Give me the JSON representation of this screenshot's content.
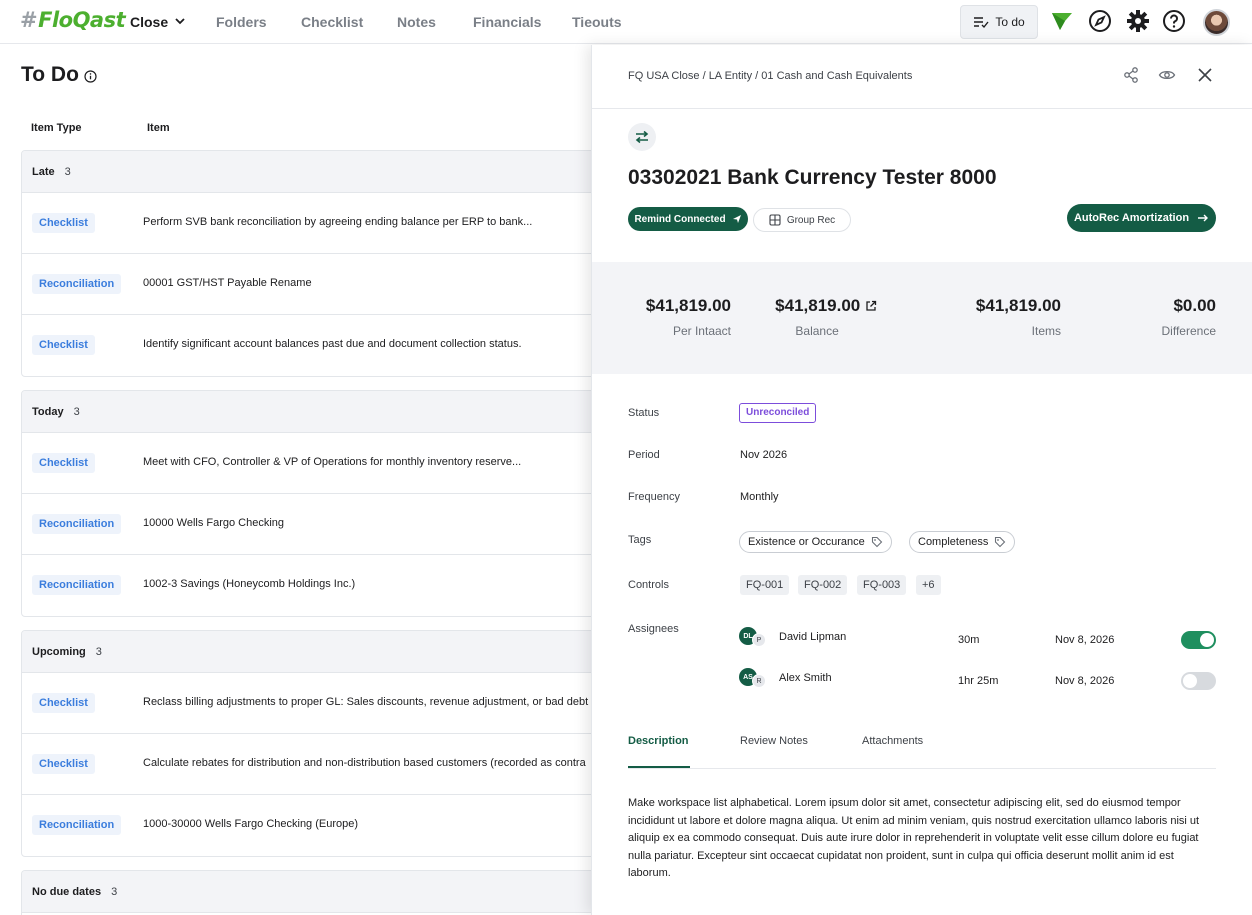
{
  "nav": {
    "logo": "FloQast",
    "close_label": "Close",
    "items": [
      "Folders",
      "Checklist",
      "Notes",
      "Financials",
      "Tieouts"
    ],
    "todo_label": "To do"
  },
  "todo": {
    "title": "To Do",
    "col_item_type": "Item Type",
    "col_item": "Item",
    "groups": [
      {
        "label": "Late",
        "count": "3",
        "rows": [
          {
            "type": "Checklist",
            "text": "Perform SVB bank reconciliation by agreeing ending balance per ERP to bank..."
          },
          {
            "type": "Reconciliation",
            "text": "00001 GST/HST Payable Rename"
          },
          {
            "type": "Checklist",
            "text": "Identify significant account balances past due and document collection status."
          }
        ]
      },
      {
        "label": "Today",
        "count": "3",
        "rows": [
          {
            "type": "Checklist",
            "text": "Meet with CFO, Controller & VP of Operations for monthly inventory reserve..."
          },
          {
            "type": "Reconciliation",
            "text": "10000 Wells Fargo Checking"
          },
          {
            "type": "Reconciliation",
            "text": "1002-3 Savings (Honeycomb Holdings Inc.)"
          }
        ]
      },
      {
        "label": "Upcoming",
        "count": "3",
        "rows": [
          {
            "type": "Checklist",
            "text": "Reclass billing adjustments to proper GL: Sales discounts, revenue adjustment, or bad debt"
          },
          {
            "type": "Checklist",
            "text": "Calculate rebates for distribution and non-distribution based customers (recorded as contra"
          },
          {
            "type": "Reconciliation",
            "text": "1000-30000 Wells Fargo Checking (Europe)"
          }
        ]
      },
      {
        "label": "No due dates",
        "count": "3",
        "rows": []
      }
    ]
  },
  "panel": {
    "breadcrumb": "FQ USA Close / LA Entity  /  01 Cash and Cash Equivalents",
    "title": "03302021 Bank Currency Tester 8000",
    "remind_label": "Remind Connected",
    "group_rec_label": "Group Rec",
    "autorec_label": "AutoRec Amortization",
    "stats": [
      {
        "amount": "$41,819.00",
        "label": "Per Intaact"
      },
      {
        "amount": "$41,819.00",
        "label": "Balance"
      },
      {
        "amount": "$41,819.00",
        "label": "Items"
      },
      {
        "amount": "$0.00",
        "label": "Difference"
      }
    ],
    "fields": {
      "status_label": "Status",
      "status_value": "Unreconciled",
      "period_label": "Period",
      "period_value": "Nov 2026",
      "frequency_label": "Frequency",
      "frequency_value": "Monthly",
      "tags_label": "Tags",
      "tags": [
        "Existence or Occurance",
        "Completeness"
      ],
      "controls_label": "Controls",
      "controls": [
        "FQ-001",
        "FQ-002",
        "FQ-003",
        "+6"
      ],
      "assignees_label": "Assignees"
    },
    "assignees": [
      {
        "initials": "DL",
        "role": "P",
        "name": "David Lipman",
        "duration": "30m",
        "date": "Nov 8, 2026",
        "enabled": true
      },
      {
        "initials": "AS",
        "role": "R",
        "name": "Alex Smith",
        "duration": "1hr 25m",
        "date": "Nov 8, 2026",
        "enabled": false
      }
    ],
    "tabs": [
      "Description",
      "Review Notes",
      "Attachments"
    ],
    "description": "Make workspace list alphabetical. Lorem ipsum dolor sit amet, consectetur adipiscing elit, sed do eiusmod tempor incididunt ut labore et dolore magna aliqua. Ut enim ad minim veniam, quis nostrud exercitation ullamco laboris nisi ut aliquip ex ea commodo consequat. Duis aute irure dolor in reprehenderit in voluptate velit esse cillum dolore eu fugiat nulla pariatur. Excepteur sint occaecat cupidatat non proident, sunt in culpa qui officia deserunt mollit anim id est laborum."
  },
  "colors": {
    "accent": "#145c45",
    "badge_text": "#3b7ddd",
    "status": "#7c4ddb",
    "logo": "#4caf2f"
  }
}
